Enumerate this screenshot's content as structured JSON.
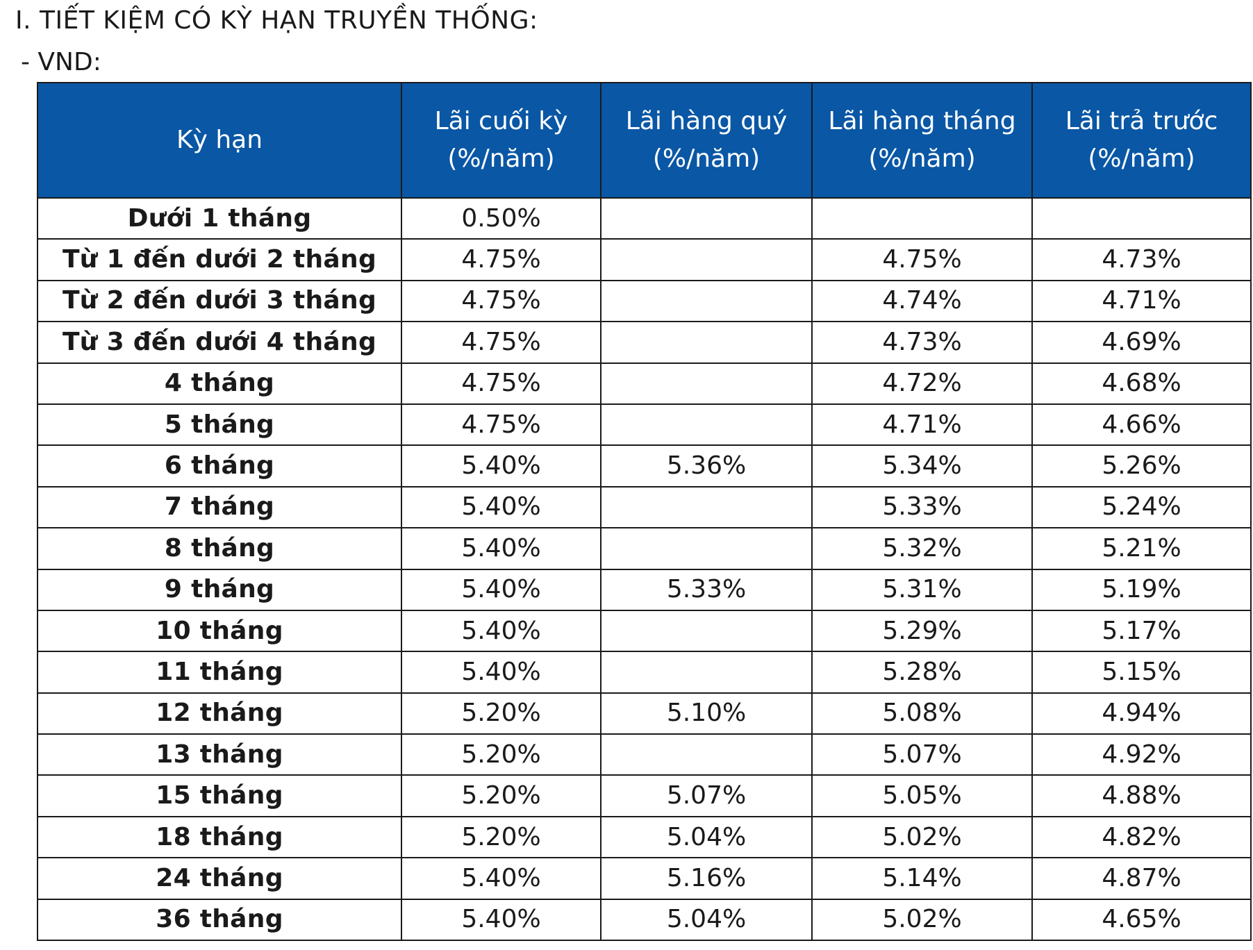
{
  "heading": {
    "section_title": "I. TIẾT KIỆM CÓ KỲ HẠN TRUYỀN THỐNG:",
    "currency_label": "- VND:"
  },
  "table": {
    "headers": {
      "term": "Kỳ hạn",
      "end_of_term": {
        "line1": "Lãi cuối kỳ",
        "line2": "(%/năm)"
      },
      "quarterly": {
        "line1": "Lãi hàng quý",
        "line2": "(%/năm)"
      },
      "monthly": {
        "line1": "Lãi hàng tháng",
        "line2": "(%/năm)"
      },
      "prepaid": {
        "line1": "Lãi trả trước",
        "line2": "(%/năm)"
      }
    },
    "rows": [
      {
        "term": "Dưới 1 tháng",
        "end_of_term": "0.50%",
        "quarterly": "",
        "monthly": "",
        "prepaid": ""
      },
      {
        "term": "Từ 1 đến dưới 2 tháng",
        "end_of_term": "4.75%",
        "quarterly": "",
        "monthly": "4.75%",
        "prepaid": "4.73%"
      },
      {
        "term": "Từ 2 đến dưới 3 tháng",
        "end_of_term": "4.75%",
        "quarterly": "",
        "monthly": "4.74%",
        "prepaid": "4.71%"
      },
      {
        "term": "Từ 3 đến dưới 4 tháng",
        "end_of_term": "4.75%",
        "quarterly": "",
        "monthly": "4.73%",
        "prepaid": "4.69%"
      },
      {
        "term": "4 tháng",
        "end_of_term": "4.75%",
        "quarterly": "",
        "monthly": "4.72%",
        "prepaid": "4.68%"
      },
      {
        "term": "5 tháng",
        "end_of_term": "4.75%",
        "quarterly": "",
        "monthly": "4.71%",
        "prepaid": "4.66%"
      },
      {
        "term": "6 tháng",
        "end_of_term": "5.40%",
        "quarterly": "5.36%",
        "monthly": "5.34%",
        "prepaid": "5.26%"
      },
      {
        "term": "7 tháng",
        "end_of_term": "5.40%",
        "quarterly": "",
        "monthly": "5.33%",
        "prepaid": "5.24%"
      },
      {
        "term": "8 tháng",
        "end_of_term": "5.40%",
        "quarterly": "",
        "monthly": "5.32%",
        "prepaid": "5.21%"
      },
      {
        "term": "9 tháng",
        "end_of_term": "5.40%",
        "quarterly": "5.33%",
        "monthly": "5.31%",
        "prepaid": "5.19%"
      },
      {
        "term": "10 tháng",
        "end_of_term": "5.40%",
        "quarterly": "",
        "monthly": "5.29%",
        "prepaid": "5.17%"
      },
      {
        "term": "11 tháng",
        "end_of_term": "5.40%",
        "quarterly": "",
        "monthly": "5.28%",
        "prepaid": "5.15%"
      },
      {
        "term": "12 tháng",
        "end_of_term": "5.20%",
        "quarterly": "5.10%",
        "monthly": "5.08%",
        "prepaid": "4.94%"
      },
      {
        "term": "13 tháng",
        "end_of_term": "5.20%",
        "quarterly": "",
        "monthly": "5.07%",
        "prepaid": "4.92%"
      },
      {
        "term": "15 tháng",
        "end_of_term": "5.20%",
        "quarterly": "5.07%",
        "monthly": "5.05%",
        "prepaid": "4.88%"
      },
      {
        "term": "18 tháng",
        "end_of_term": "5.20%",
        "quarterly": "5.04%",
        "monthly": "5.02%",
        "prepaid": "4.82%"
      },
      {
        "term": "24 tháng",
        "end_of_term": "5.40%",
        "quarterly": "5.16%",
        "monthly": "5.14%",
        "prepaid": "4.87%"
      },
      {
        "term": "36 tháng",
        "end_of_term": "5.40%",
        "quarterly": "5.04%",
        "monthly": "5.02%",
        "prepaid": "4.65%"
      }
    ]
  },
  "colors": {
    "header_background": "#0a57a5",
    "header_text": "#ffffff",
    "border": "#1a1a1a"
  }
}
